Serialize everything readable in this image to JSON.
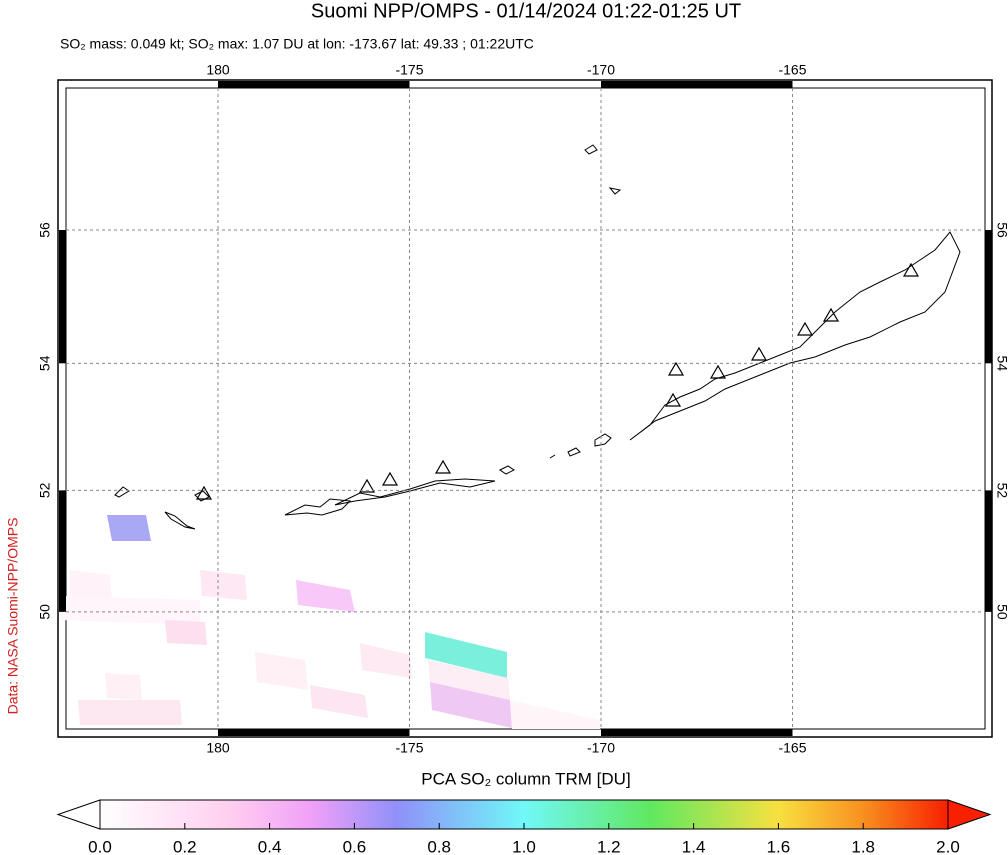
{
  "title": "Suomi NPP/OMPS - 01/14/2024 01:22-01:25 UT",
  "subtitle": "SO₂ mass: 0.049 kt; SO₂ max: 1.07 DU at lon: -173.67 lat: 49.33 ; 01:22UTC",
  "map": {
    "lon_ticks": [
      180,
      -175,
      -170,
      -165
    ],
    "lat_ticks": [
      56,
      54,
      52,
      50
    ]
  },
  "colorbar": {
    "label": "PCA SO₂ column TRM [DU]",
    "range": [
      0,
      2
    ],
    "ticks": [
      {
        "value": 0,
        "label": "0.0"
      },
      {
        "value": 0.2,
        "label": "0.2"
      },
      {
        "value": 0.4,
        "label": "0.4"
      },
      {
        "value": 0.6,
        "label": "0.6"
      },
      {
        "value": 0.8,
        "label": "0.8"
      },
      {
        "value": 1,
        "label": "1.0"
      },
      {
        "value": 1.2,
        "label": "1.2"
      },
      {
        "value": 1.4,
        "label": "1.4"
      },
      {
        "value": 1.6,
        "label": "1.6"
      },
      {
        "value": 1.8,
        "label": "1.8"
      },
      {
        "value": 2,
        "label": "2.0"
      }
    ]
  },
  "credit": "Data: NASA Suomi-NPP/OMPS"
}
